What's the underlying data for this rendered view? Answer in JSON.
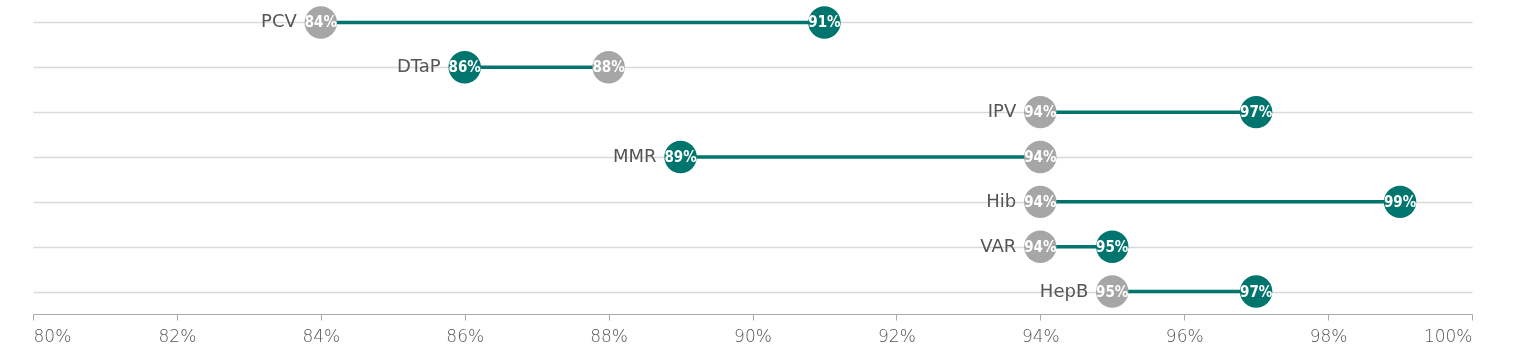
{
  "chart_data": {
    "type": "scatter",
    "orientation": "horizontal",
    "categories": [
      "PCV",
      "DTaP",
      "IPV",
      "MMR",
      "Hib",
      "VAR",
      "HepB"
    ],
    "series": [
      {
        "color": "#a6a6a6",
        "values": [
          84,
          88,
          94,
          94,
          94,
          94,
          95
        ],
        "value_labels": [
          "84%",
          "88%",
          "94%",
          "94%",
          "94%",
          "94%",
          "95%"
        ]
      },
      {
        "color": "#00756d",
        "values": [
          91,
          86,
          97,
          89,
          99,
          95,
          97
        ],
        "value_labels": [
          "91%",
          "86%",
          "97%",
          "89%",
          "99%",
          "95%",
          "97%"
        ]
      }
    ],
    "xlim": [
      80,
      100
    ],
    "xticks": [
      {
        "value": 80,
        "label": "80%"
      },
      {
        "value": 82,
        "label": "82%"
      },
      {
        "value": 84,
        "label": "84%"
      },
      {
        "value": 86,
        "label": "86%"
      },
      {
        "value": 88,
        "label": "88%"
      },
      {
        "value": 90,
        "label": "90%"
      },
      {
        "value": 92,
        "label": "92%"
      },
      {
        "value": 94,
        "label": "94%"
      },
      {
        "value": 96,
        "label": "96%"
      },
      {
        "value": 98,
        "label": "98%"
      },
      {
        "value": 100,
        "label": "100%"
      }
    ],
    "grid": "y",
    "marker": "circle"
  }
}
